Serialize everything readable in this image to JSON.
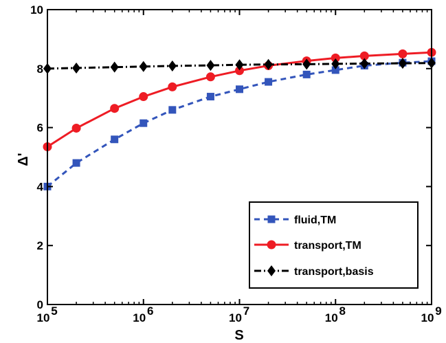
{
  "chart_data": {
    "type": "line",
    "xlabel": "S",
    "ylabel": "Δ'",
    "xscale": "log",
    "xlim": [
      100000,
      1000000000
    ],
    "ylim": [
      0,
      10
    ],
    "x_tick_labels": [
      {
        "base": "10",
        "exp": "5"
      },
      {
        "base": "10",
        "exp": "6"
      },
      {
        "base": "10",
        "exp": "7"
      },
      {
        "base": "10",
        "exp": "8"
      },
      {
        "base": "10",
        "exp": "9"
      }
    ],
    "y_ticks": [
      "0",
      "2",
      "4",
      "6",
      "8",
      "10"
    ],
    "grid": false,
    "legend_position": "bottom-right",
    "x": [
      100000,
      200000,
      500000,
      1000000,
      2000000,
      5000000,
      10000000,
      20000000,
      50000000,
      100000000,
      200000000,
      500000000,
      1000000000
    ],
    "series": [
      {
        "name": "fluid,TM",
        "color": "#3355bb",
        "line_style": "dashed",
        "marker": "square",
        "values": [
          4.0,
          4.8,
          5.6,
          6.15,
          6.6,
          7.05,
          7.3,
          7.55,
          7.8,
          7.95,
          8.1,
          8.2,
          8.25
        ]
      },
      {
        "name": "transport,TM",
        "color": "#ee1c24",
        "line_style": "solid",
        "marker": "circle",
        "values": [
          5.35,
          5.98,
          6.65,
          7.05,
          7.38,
          7.72,
          7.93,
          8.1,
          8.26,
          8.36,
          8.43,
          8.5,
          8.55
        ]
      },
      {
        "name": "transport,basis",
        "color": "#000000",
        "line_style": "dashdot",
        "marker": "diamond",
        "values": [
          8.0,
          8.02,
          8.05,
          8.07,
          8.09,
          8.11,
          8.13,
          8.14,
          8.15,
          8.16,
          8.17,
          8.18,
          8.19
        ]
      }
    ]
  }
}
